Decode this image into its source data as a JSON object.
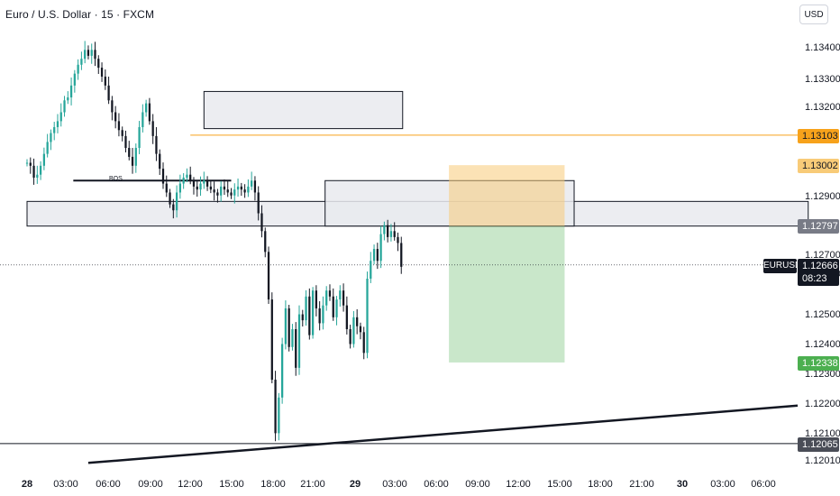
{
  "header": {
    "title": "Euro / U.S. Dollar · 15 · FXCM",
    "currency": "USD"
  },
  "price_axis": {
    "labels": [
      "1.13400",
      "1.13300",
      "1.13200",
      "1.12900",
      "1.12700",
      "1.12600",
      "1.12500",
      "1.12400",
      "1.12300",
      "1.12200",
      "1.12100",
      "1.12010"
    ],
    "badges": {
      "resistance": "1.13103",
      "entry_top": "1.13002",
      "zone_level": "1.12797",
      "take_profit": "1.12338",
      "support": "1.12065"
    },
    "symbol": "EURUSD",
    "current_price": "1.12666",
    "countdown": "08:23"
  },
  "time_axis": {
    "labels": [
      "28",
      "03:00",
      "06:00",
      "09:00",
      "12:00",
      "15:00",
      "18:00",
      "21:00",
      "29",
      "03:00",
      "06:00",
      "09:00",
      "12:00",
      "15:00",
      "18:00",
      "21:00",
      "30",
      "03:00",
      "06:00"
    ]
  },
  "annotations": {
    "bos_label": "BOS"
  },
  "colors": {
    "up": "#26a69a",
    "down": "#131722",
    "resistance_line": "#f7a21b",
    "profit_zone": "#4caf50",
    "stop_zone": "#f8cb78",
    "zone_fill": "#e9eaee"
  },
  "chart_data": {
    "type": "candlestick",
    "symbol": "EURUSD",
    "timeframe": "15",
    "ylim": [
      1.1201,
      1.1349
    ],
    "x_range_hours": [
      0,
      200
    ],
    "levels": {
      "resistance": 1.13103,
      "entry_top": 1.13002,
      "zone_level": 1.12797,
      "current": 1.12666,
      "take_profit": 1.12338,
      "support": 1.12065
    },
    "zones": [
      {
        "name": "upper supply zone",
        "t_start": 13.0,
        "t_end": 27.6,
        "price_high": 1.1325,
        "price_low": 1.13125
      },
      {
        "name": "wide zone",
        "t_start": 0.0,
        "t_end": 57.4,
        "price_high": 1.1288,
        "price_low": 1.12797
      },
      {
        "name": "mid zone",
        "t_start": 21.9,
        "t_end": 40.2,
        "price_high": 1.1295,
        "price_low": 1.12797
      }
    ],
    "position": {
      "t_start": 31.0,
      "t_end": 39.5,
      "stop": 1.13002,
      "entry": 1.12797,
      "target": 1.12338
    },
    "bos": {
      "t_start": 3.4,
      "t_end": 15.0,
      "price": 1.1295
    },
    "trendline": {
      "t_start": 4.5,
      "p_start": 1.12,
      "t_end": 64.0,
      "p_end": 1.1222
    },
    "candles": {
      "t_start": 0.0,
      "t_step": 0.25,
      "close": [
        1.1301,
        1.13,
        1.1296,
        1.1297,
        1.13,
        1.1304,
        1.1308,
        1.1311,
        1.1313,
        1.1315,
        1.1318,
        1.1322,
        1.1323,
        1.1327,
        1.1331,
        1.1334,
        1.1336,
        1.1339,
        1.1337,
        1.1339,
        1.1336,
        1.1333,
        1.133,
        1.1327,
        1.1322,
        1.1318,
        1.1315,
        1.1312,
        1.131,
        1.1306,
        1.1303,
        1.13,
        1.1306,
        1.1313,
        1.1318,
        1.1321,
        1.1315,
        1.131,
        1.1304,
        1.1299,
        1.1294,
        1.1291,
        1.1287,
        1.1285,
        1.1291,
        1.1294,
        1.1296,
        1.1297,
        1.1295,
        1.1293,
        1.1292,
        1.1294,
        1.1295,
        1.1293,
        1.1292,
        1.1291,
        1.129,
        1.1293,
        1.1292,
        1.1291,
        1.129,
        1.1292,
        1.1293,
        1.1292,
        1.1291,
        1.1293,
        1.1295,
        1.1291,
        1.1284,
        1.1278,
        1.1271,
        1.1255,
        1.1228,
        1.121,
        1.1222,
        1.124,
        1.1252,
        1.1239,
        1.1245,
        1.1232,
        1.125,
        1.1248,
        1.1256,
        1.1243,
        1.1258,
        1.1252,
        1.1247,
        1.1253,
        1.1258,
        1.1256,
        1.1249,
        1.1255,
        1.1258,
        1.1253,
        1.1245,
        1.124,
        1.1249,
        1.1246,
        1.1244,
        1.1237,
        1.1262,
        1.1268,
        1.1272,
        1.1268,
        1.1277,
        1.128,
        1.1276,
        1.1278,
        1.1276,
        1.1274,
        1.1266
      ]
    }
  }
}
